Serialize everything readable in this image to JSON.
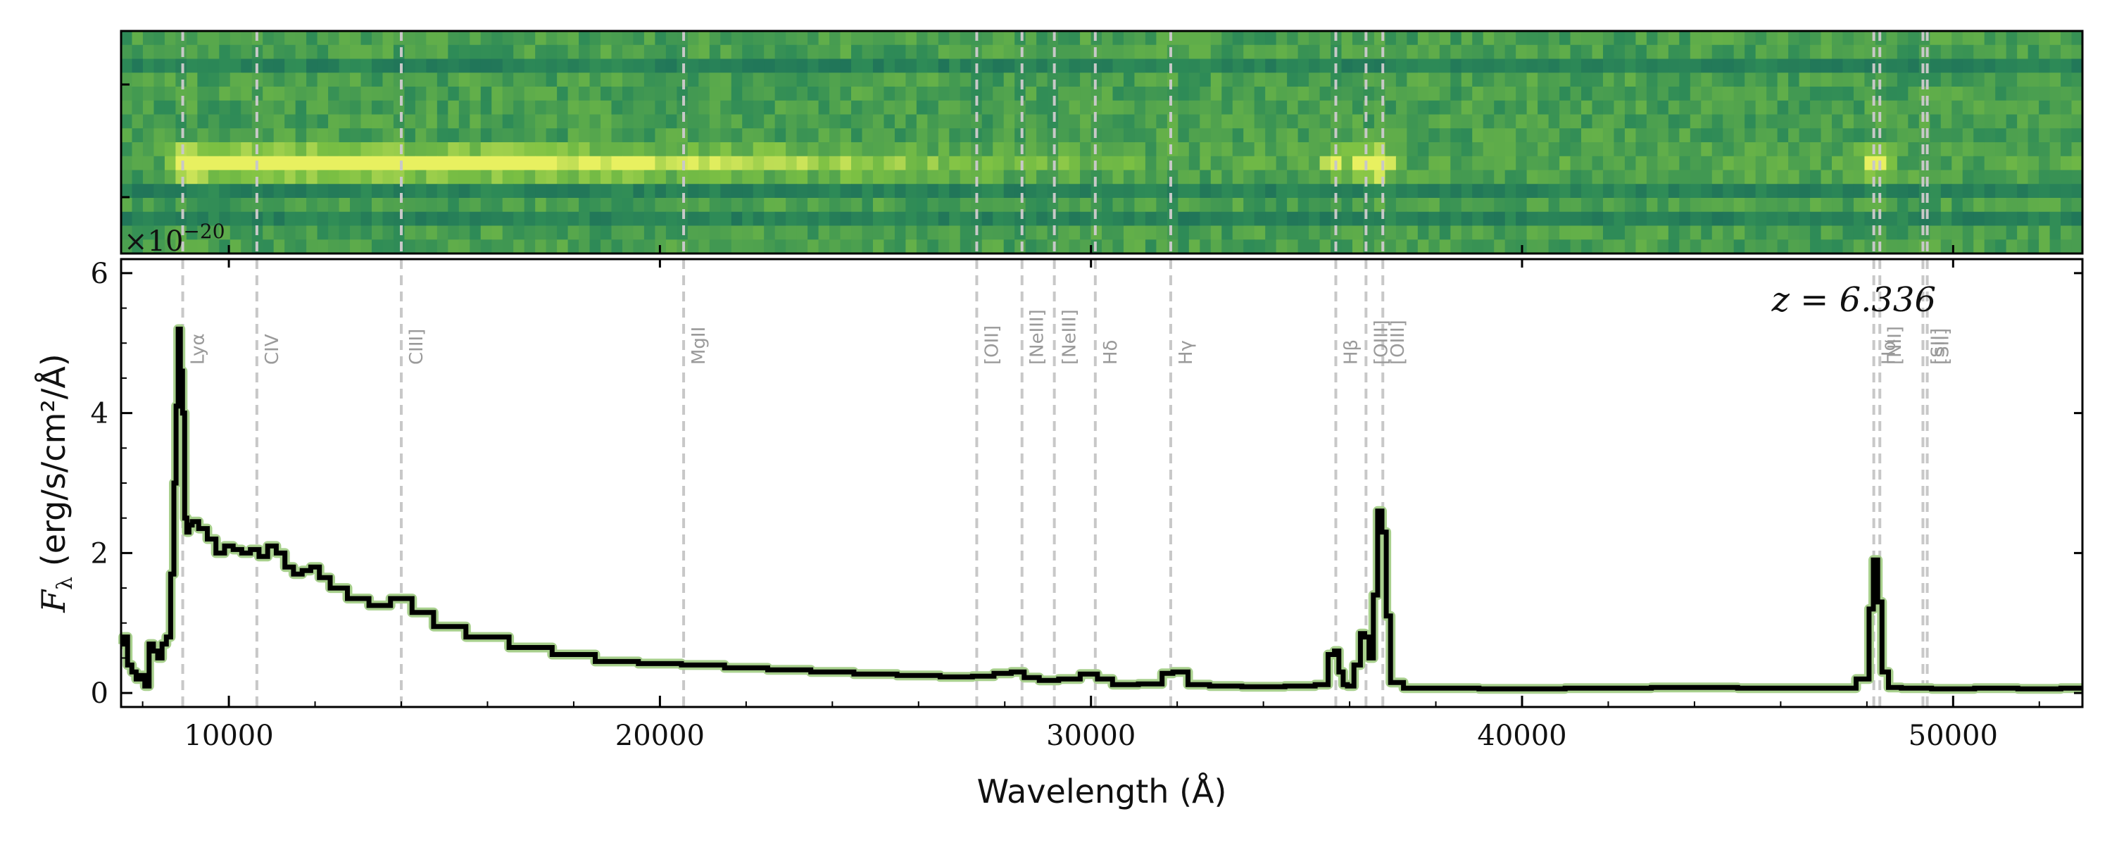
{
  "chart_data": [
    {
      "type": "heatmap",
      "title": "",
      "description_text": "",
      "rows": 16,
      "xlim": [
        7500,
        53000
      ],
      "trace_row": 9,
      "bright_features": [
        {
          "x": 8925,
          "strength": 1.0
        },
        {
          "x": 35650,
          "strength": 0.7
        },
        {
          "x": 36300,
          "strength": 0.8
        },
        {
          "x": 36700,
          "strength": 1.0
        },
        {
          "x": 48200,
          "strength": 0.9
        }
      ],
      "colormap": [
        "#1a6b5a",
        "#2e8b57",
        "#7bc043",
        "#e8f060"
      ]
    },
    {
      "type": "line",
      "xlabel": "Wavelength (Å)",
      "ylabel_prefix": "F",
      "ylabel_sub": "λ",
      "ylabel_units": " (erg/s/cm²/Å)",
      "scale_label_prefix": "×10",
      "scale_label_exp": "−20",
      "redshift_label": "z = 6.336",
      "xlim": [
        7500,
        53000
      ],
      "ylim": [
        -0.2,
        6.2
      ],
      "xticks": [
        10000,
        20000,
        30000,
        40000,
        50000
      ],
      "xtick_labels": [
        "10000",
        "20000",
        "30000",
        "40000",
        "50000"
      ],
      "yticks": [
        0,
        2,
        4,
        6
      ],
      "ytick_labels": [
        "0",
        "2",
        "4",
        "6"
      ],
      "line_color": "#000000",
      "error_color": "#a8d08d",
      "series": [
        {
          "x": [
            7500,
            7600,
            7700,
            7800,
            7900,
            8000,
            8100,
            8200,
            8300,
            8400,
            8500,
            8600,
            8700,
            8750,
            8800,
            8850,
            8900,
            8950,
            9000,
            9050,
            9100,
            9200,
            9400,
            9600,
            9800,
            10000,
            10200,
            10400,
            10600,
            10800,
            11000,
            11200,
            11400,
            11600,
            11800,
            12000,
            12200,
            12500,
            13000,
            13500,
            14000,
            14500,
            15000,
            16000,
            17000,
            18000,
            19000,
            20000,
            21000,
            22000,
            23000,
            24000,
            25000,
            26000,
            27000,
            27500,
            28000,
            28300,
            28600,
            29000,
            29500,
            30000,
            30300,
            30700,
            31500,
            31800,
            32000,
            32500,
            33000,
            34000,
            35000,
            35400,
            35600,
            35700,
            35800,
            35900,
            36000,
            36200,
            36300,
            36400,
            36500,
            36600,
            36700,
            36800,
            36900,
            37000,
            37500,
            38000,
            40000,
            42000,
            44000,
            46000,
            47500,
            48000,
            48100,
            48200,
            48300,
            48400,
            48600,
            49000,
            50000,
            51000,
            52000,
            53000
          ],
          "y": [
            0.7,
            0.8,
            0.4,
            0.3,
            0.2,
            0.25,
            0.1,
            0.7,
            0.6,
            0.5,
            0.7,
            0.8,
            1.7,
            3.0,
            4.1,
            5.2,
            4.6,
            4.0,
            2.5,
            2.3,
            2.4,
            2.45,
            2.35,
            2.2,
            2.0,
            2.1,
            2.05,
            2.0,
            2.05,
            1.95,
            2.1,
            2.0,
            1.8,
            1.7,
            1.75,
            1.8,
            1.65,
            1.5,
            1.35,
            1.25,
            1.35,
            1.15,
            0.95,
            0.8,
            0.65,
            0.55,
            0.45,
            0.42,
            0.4,
            0.36,
            0.33,
            0.3,
            0.27,
            0.25,
            0.23,
            0.24,
            0.28,
            0.3,
            0.22,
            0.18,
            0.2,
            0.27,
            0.2,
            0.12,
            0.13,
            0.28,
            0.3,
            0.12,
            0.1,
            0.09,
            0.1,
            0.12,
            0.55,
            0.6,
            0.3,
            0.12,
            0.1,
            0.4,
            0.85,
            0.8,
            0.5,
            1.4,
            2.6,
            2.3,
            1.1,
            0.15,
            0.07,
            0.07,
            0.06,
            0.07,
            0.08,
            0.07,
            0.07,
            0.2,
            1.2,
            1.9,
            1.3,
            0.3,
            0.08,
            0.07,
            0.06,
            0.07,
            0.06,
            0.07
          ]
        }
      ],
      "emission_lines": [
        {
          "name": "Lyα",
          "x": 8930
        },
        {
          "name": "CIV",
          "x": 10650
        },
        {
          "name": "CIII]",
          "x": 14000
        },
        {
          "name": "MgII",
          "x": 20550
        },
        {
          "name": "[OII]",
          "x": 27350
        },
        {
          "name": "[NeIII]",
          "x": 28400
        },
        {
          "name": "[NeIII]",
          "x": 29150
        },
        {
          "name": "Hδ",
          "x": 30100
        },
        {
          "name": "Hγ",
          "x": 31850
        },
        {
          "name": "Hβ",
          "x": 35680
        },
        {
          "name": "[OIII]",
          "x": 36380
        },
        {
          "name": "[OIII]",
          "x": 36770
        },
        {
          "name": "Hα",
          "x": 48160
        },
        {
          "name": "[NII]",
          "x": 48300
        },
        {
          "name": "[SII]",
          "x": 49300
        },
        {
          "name": "[SII]",
          "x": 49400
        }
      ]
    }
  ]
}
